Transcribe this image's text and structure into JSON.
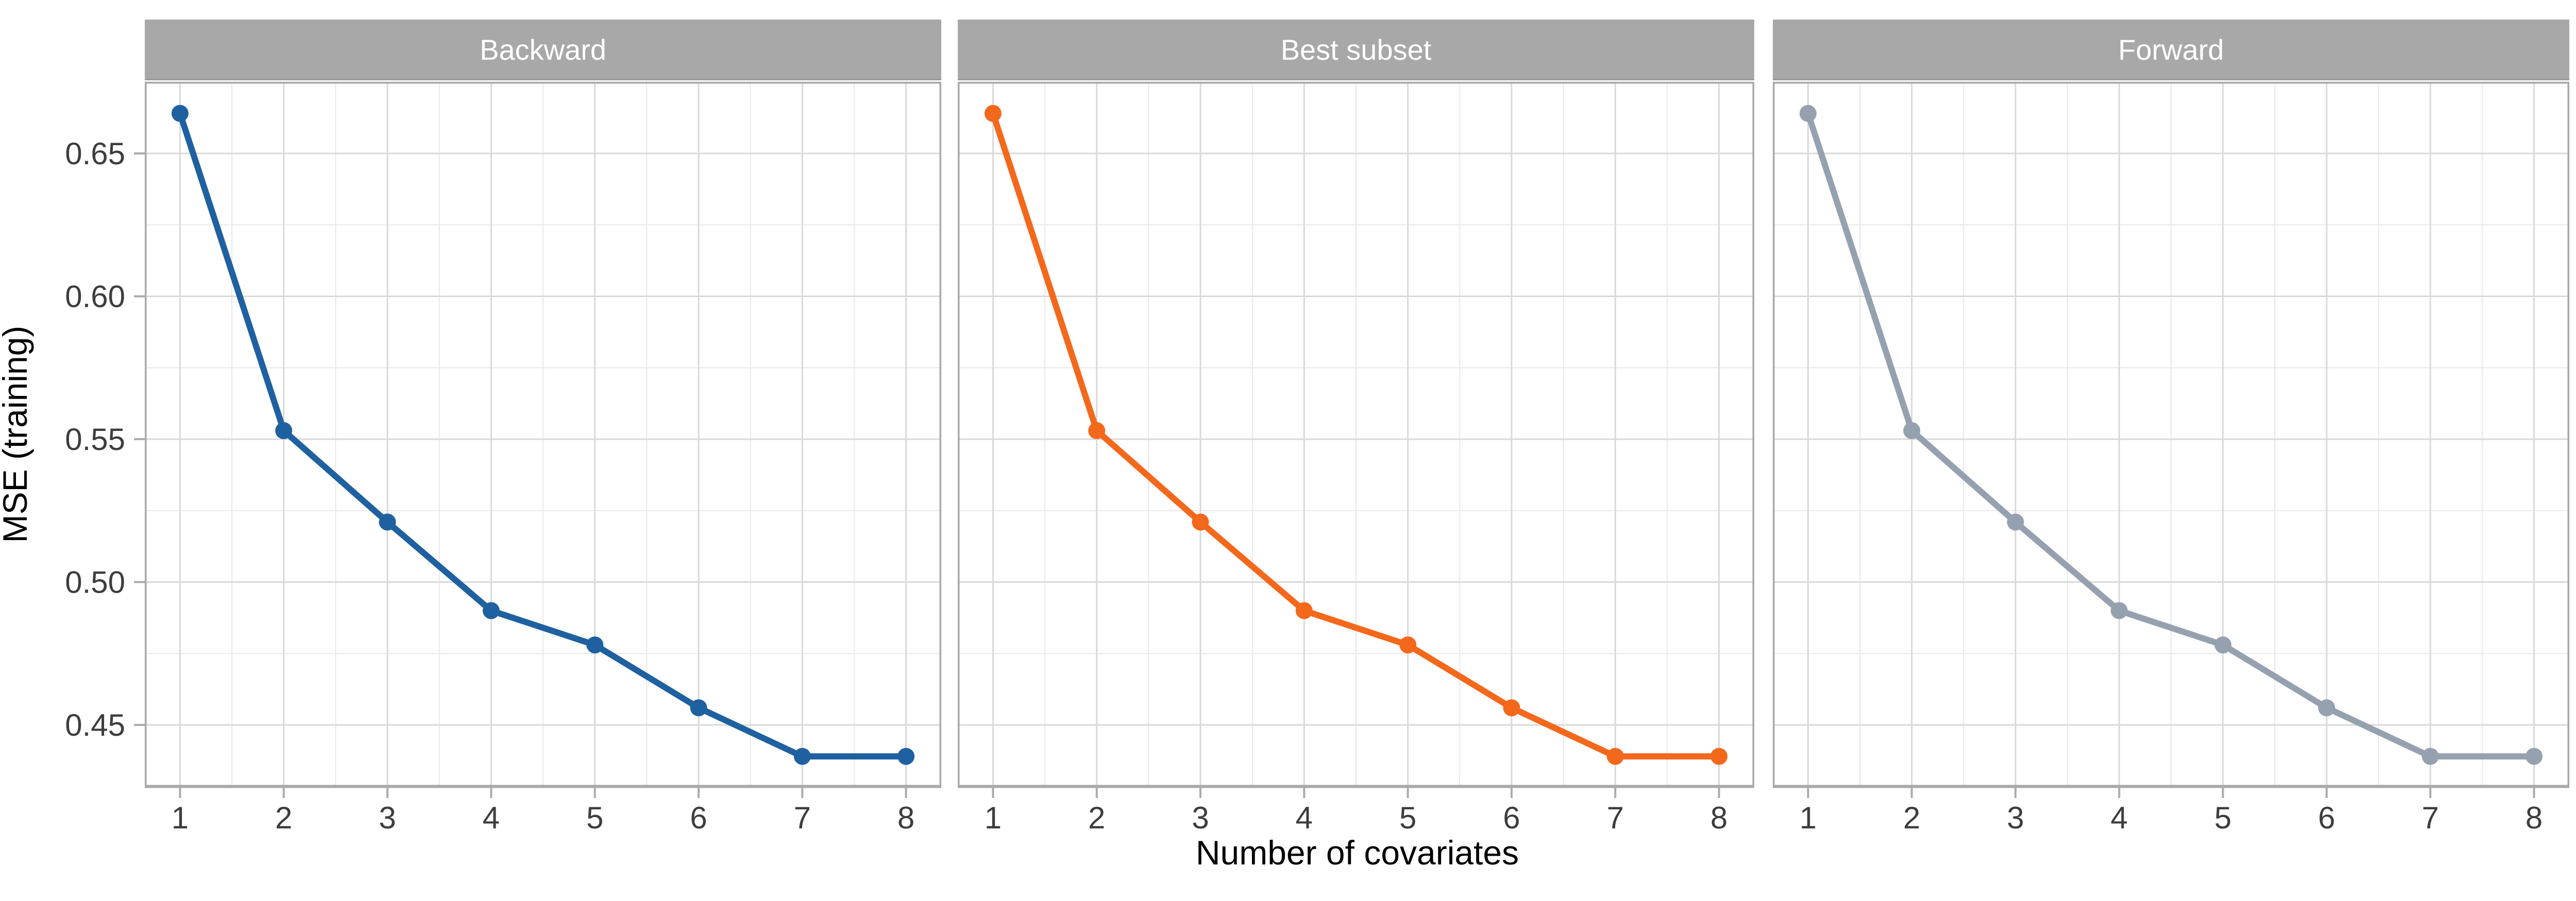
{
  "figure": {
    "background": "#FFFFFF",
    "xlabel": "Number of covariates",
    "ylabel": "MSE (training)"
  },
  "chart_data": {
    "type": "line",
    "faceted": true,
    "title": "",
    "xlabel": "Number of covariates",
    "ylabel": "MSE (training)",
    "x": [
      1,
      2,
      3,
      4,
      5,
      6,
      7,
      8
    ],
    "facets": [
      {
        "label": "Backward",
        "color": "#1F61A0",
        "values": [
          0.664,
          0.553,
          0.521,
          0.49,
          0.478,
          0.456,
          0.439,
          0.439
        ]
      },
      {
        "label": "Best subset",
        "color": "#F4681C",
        "values": [
          0.664,
          0.553,
          0.521,
          0.49,
          0.478,
          0.456,
          0.439,
          0.439
        ]
      },
      {
        "label": "Forward",
        "color": "#96A1B0",
        "values": [
          0.664,
          0.553,
          0.521,
          0.49,
          0.478,
          0.456,
          0.439,
          0.439
        ]
      }
    ],
    "x_ticks": [
      1,
      2,
      3,
      4,
      5,
      6,
      7,
      8
    ],
    "y_tick_values": [
      0.65,
      0.6,
      0.55,
      0.5,
      0.45
    ],
    "y_tick_labels": [
      "0.65",
      "0.60",
      "0.55",
      "0.50",
      "0.45"
    ],
    "xlim": [
      0.66,
      8.34
    ],
    "ylim": [
      0.42838,
      0.67505
    ],
    "grid": "major+minor",
    "legend": "none",
    "colors": {
      "strip_bg": "#A8A8A8",
      "strip_text": "#FFFFFF",
      "panel_border": "#A9A9A9",
      "grid_major": "#D9D9D9",
      "grid_minor": "#E8E8E8",
      "tick_mark": "#ABABAB",
      "axis_text": "#3D3D3D",
      "axis_title": "#000000"
    }
  }
}
